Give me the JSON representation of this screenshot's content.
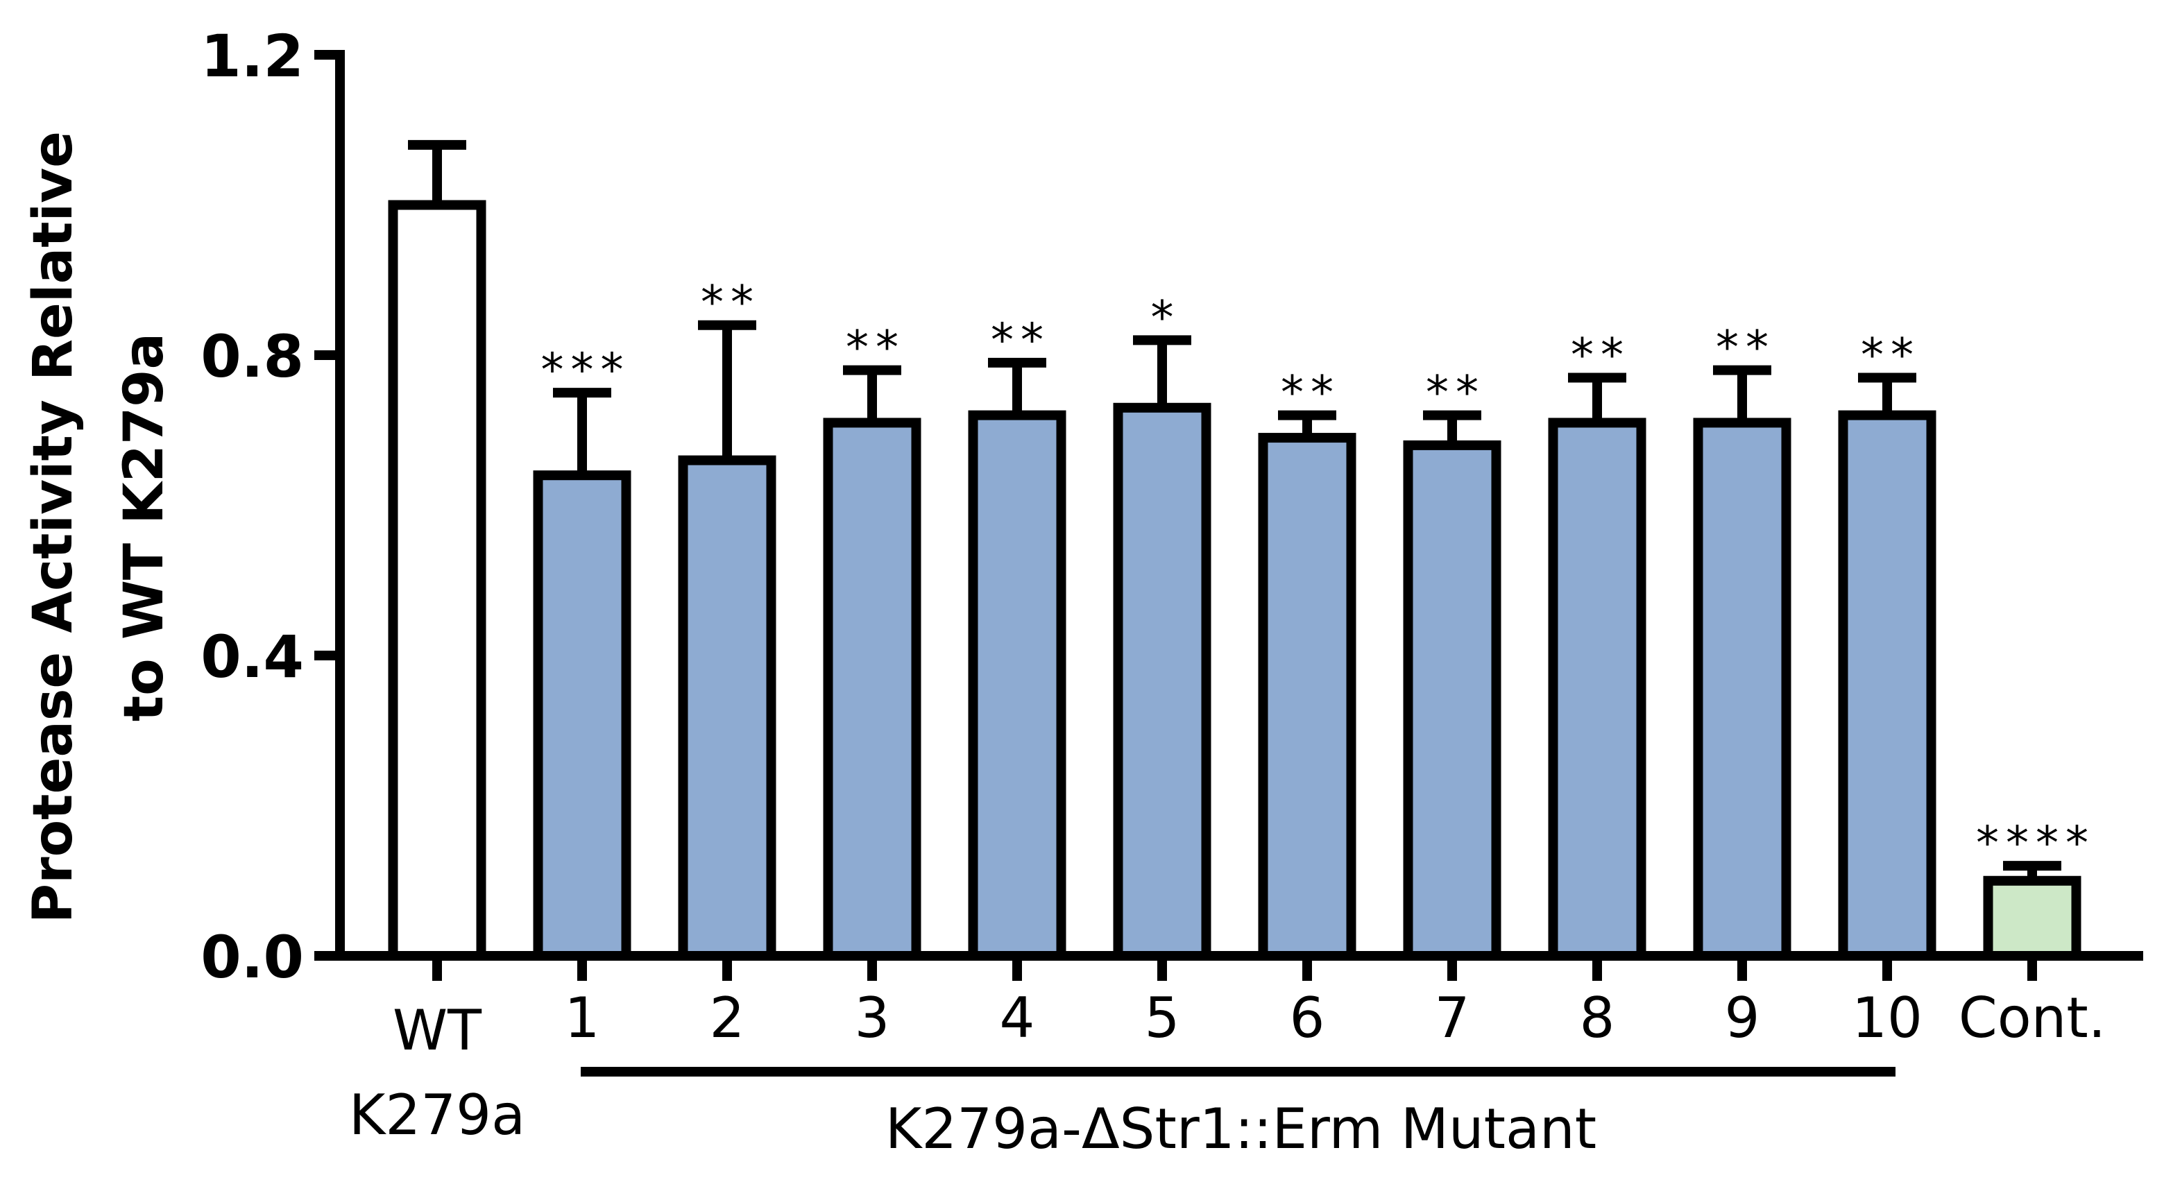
{
  "chart_data": {
    "type": "bar",
    "title": "",
    "xlabel": "",
    "ylabel": "Protease Activity Relative to WT K279a",
    "ylabel_lines": [
      "Protease Activity Relative",
      "to WT K279a"
    ],
    "ylim": [
      0,
      1.2
    ],
    "yticks": [
      0.0,
      0.4,
      0.8,
      1.2
    ],
    "ytick_labels": [
      "0.0",
      "0.4",
      "0.8",
      "1.2"
    ],
    "grid": false,
    "legend": null,
    "categories": [
      "WT K279a",
      "1",
      "2",
      "3",
      "4",
      "5",
      "6",
      "7",
      "8",
      "9",
      "10",
      "Cont."
    ],
    "category_label_lines": [
      [
        "WT",
        "K279a"
      ],
      [
        "1"
      ],
      [
        "2"
      ],
      [
        "3"
      ],
      [
        "4"
      ],
      [
        "5"
      ],
      [
        "6"
      ],
      [
        "7"
      ],
      [
        "8"
      ],
      [
        "9"
      ],
      [
        "10"
      ],
      [
        "Cont."
      ]
    ],
    "values": [
      1.0,
      0.64,
      0.66,
      0.71,
      0.72,
      0.73,
      0.69,
      0.68,
      0.71,
      0.71,
      0.72,
      0.1
    ],
    "error_upper": [
      1.08,
      0.75,
      0.84,
      0.78,
      0.79,
      0.82,
      0.72,
      0.72,
      0.77,
      0.78,
      0.77,
      0.12
    ],
    "significance": [
      "",
      "***",
      "**",
      "**",
      "**",
      "*",
      "**",
      "**",
      "**",
      "**",
      "**",
      "****"
    ],
    "bar_colors": [
      "#FFFFFF",
      "#8EABD2",
      "#8EABD2",
      "#8EABD2",
      "#8EABD2",
      "#8EABD2",
      "#8EABD2",
      "#8EABD2",
      "#8EABD2",
      "#8EABD2",
      "#8EABD2",
      "#CDE8C7"
    ],
    "group_annotation": {
      "label": "K279a-ΔStr1::Erm Mutant",
      "from_category": "1",
      "to_category": "10"
    }
  },
  "colors": {
    "axis": "#000000",
    "mutant_fill": "#8EABD2",
    "control_fill": "#CDE8C7",
    "wt_fill": "#FFFFFF"
  }
}
